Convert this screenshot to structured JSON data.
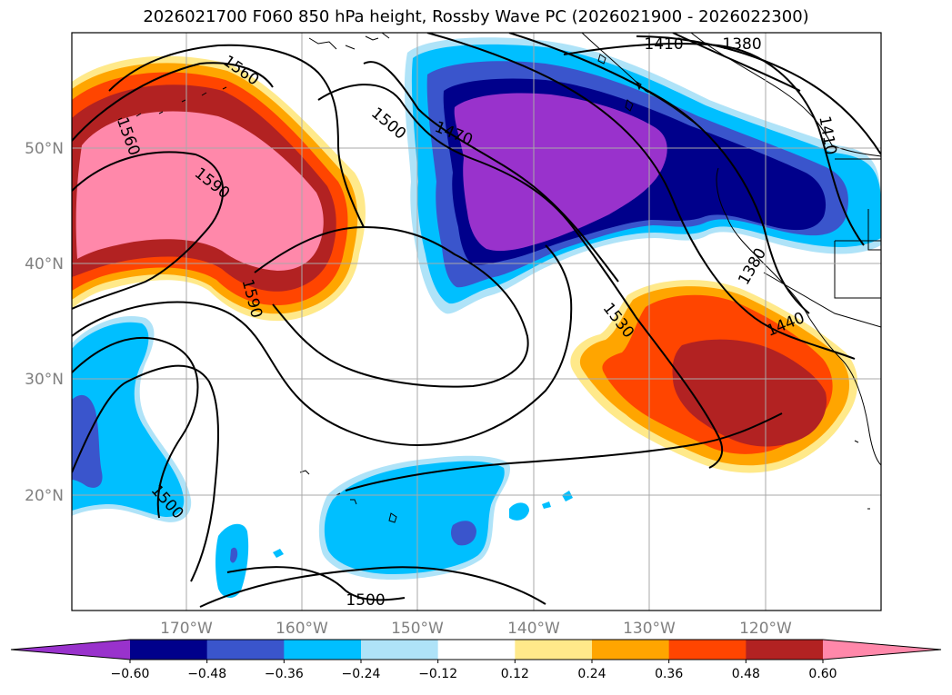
{
  "title": "2026021700 F060 850 hPa height, Rossby Wave PC (2026021900 - 2026022300)",
  "map": {
    "lon_labels": [
      "170°W",
      "160°W",
      "150°W",
      "140°W",
      "130°W",
      "120°W"
    ],
    "lat_labels": [
      "50°N",
      "40°N",
      "30°N",
      "20°N"
    ],
    "contour_labels": [
      {
        "id": "h1560a",
        "text": "1560"
      },
      {
        "id": "h1560b",
        "text": "1560"
      },
      {
        "id": "h1590a",
        "text": "1590"
      },
      {
        "id": "h1590b",
        "text": "1590"
      },
      {
        "id": "h1500a",
        "text": "1500"
      },
      {
        "id": "h1470",
        "text": "1470"
      },
      {
        "id": "h1410a",
        "text": "1410"
      },
      {
        "id": "h1380a",
        "text": "1380"
      },
      {
        "id": "h1410b",
        "text": "1410"
      },
      {
        "id": "h1380b",
        "text": "1380"
      },
      {
        "id": "h1440",
        "text": "1440"
      },
      {
        "id": "h1530",
        "text": "1530"
      },
      {
        "id": "h1500b",
        "text": "1500"
      },
      {
        "id": "h1500c",
        "text": "1500"
      }
    ]
  },
  "colorbar": {
    "colors": [
      "#9932cc",
      "#00008b",
      "#3a55cc",
      "#00bfff",
      "#afe3f8",
      "#ffffff",
      "#ffe98a",
      "#ffa500",
      "#ff4500",
      "#b22222",
      "#ff88aa"
    ],
    "ticks": [
      "−0.60",
      "−0.48",
      "−0.36",
      "−0.24",
      "−0.12",
      "0.12",
      "0.24",
      "0.36",
      "0.48",
      "0.60"
    ]
  }
}
